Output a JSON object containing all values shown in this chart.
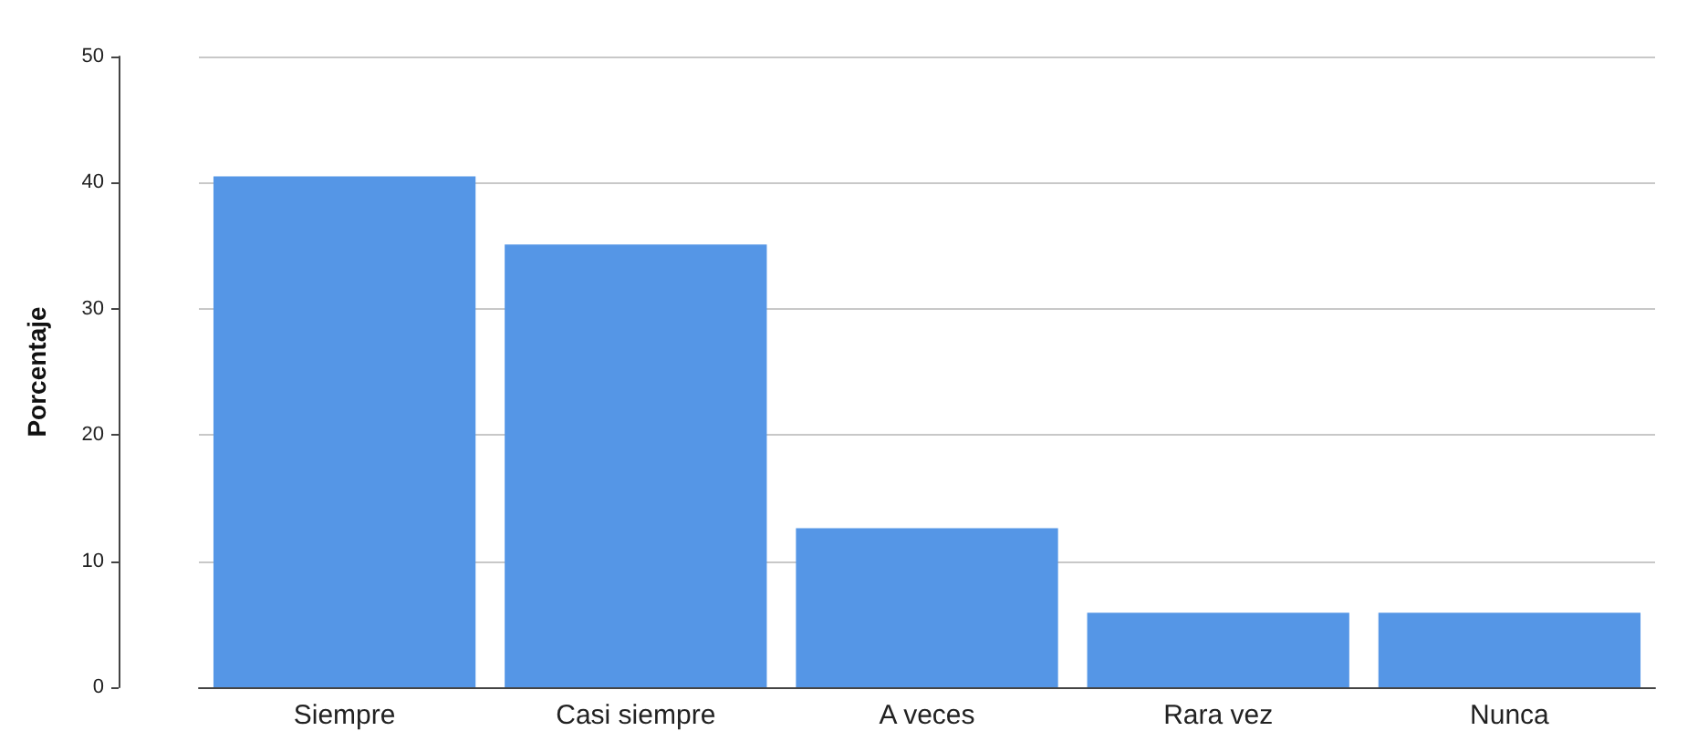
{
  "chart_data": {
    "type": "bar",
    "ylabel": "Porcentaje",
    "categories": [
      "Siempre",
      "Casi siempre",
      "A veces",
      "Rara vez",
      "Nunca"
    ],
    "values": [
      40.5,
      35.1,
      12.6,
      5.9,
      5.9
    ],
    "color": "#5596e6",
    "ylim": [
      0,
      50
    ],
    "yticks": [
      0,
      10,
      20,
      30,
      40,
      50
    ],
    "grid": "y"
  }
}
